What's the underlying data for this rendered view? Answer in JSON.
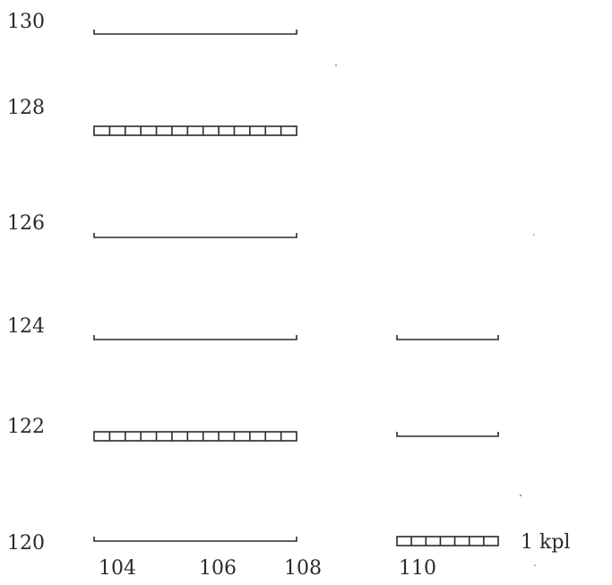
{
  "y_labels": [
    "130",
    "128",
    "126",
    "124",
    "122",
    "120"
  ],
  "x_labels": [
    "104",
    "106",
    "108",
    "110"
  ],
  "legend_label": "1 kpl",
  "bars": [
    {
      "row": "130",
      "column": "left",
      "style": "bracket"
    },
    {
      "row": "128",
      "column": "left",
      "style": "hatched"
    },
    {
      "row": "126",
      "column": "left",
      "style": "bracket"
    },
    {
      "row": "124",
      "column": "left",
      "style": "bracket"
    },
    {
      "row": "124",
      "column": "right",
      "style": "bracket"
    },
    {
      "row": "122",
      "column": "left",
      "style": "hatched"
    },
    {
      "row": "122",
      "column": "right",
      "style": "bracket"
    },
    {
      "row": "120",
      "column": "left",
      "style": "bracket"
    },
    {
      "row": "120",
      "column": "right",
      "style": "hatched",
      "legend": true
    }
  ],
  "colors": {
    "ink": "#2a2a2a",
    "background": "#ffffff"
  }
}
